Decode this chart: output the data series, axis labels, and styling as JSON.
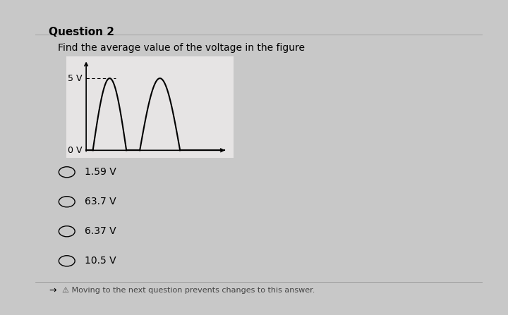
{
  "title": "Question 2",
  "question_text": "Find the average value of the voltage in the figure",
  "choices": [
    "1.59 V",
    "63.7 V",
    "6.37 V",
    "10.5 V"
  ],
  "footer_text": "Moving to the next question prevents changes to this answer.",
  "y_label_5v": "5 V",
  "y_label_0v": "0 V",
  "bg_color": "#c8c8c8",
  "panel_color": "#e6e4e4",
  "line_color": "#000000",
  "title_fontsize": 11,
  "question_fontsize": 10,
  "choice_fontsize": 10,
  "axis_label_fontsize": 9
}
